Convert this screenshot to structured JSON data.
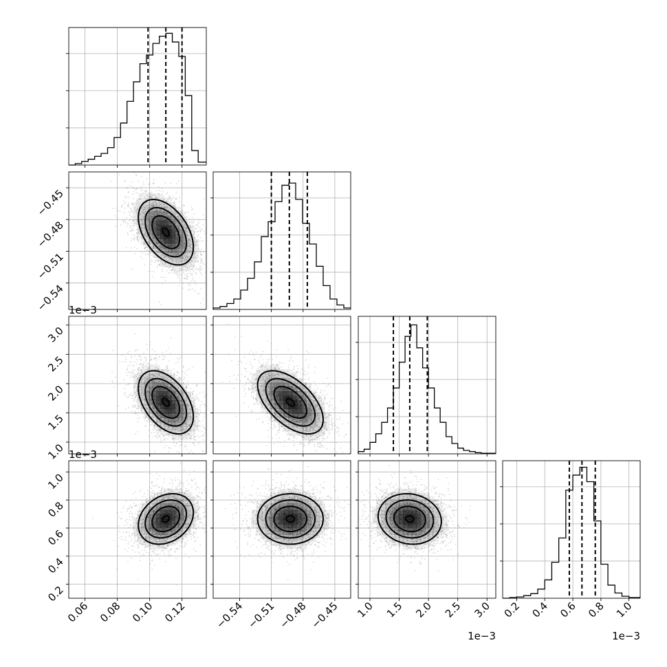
{
  "chart_data": {
    "type": "corner",
    "grid": true,
    "params": [
      {
        "id": "p0",
        "lim": [
          0.05,
          0.135
        ],
        "ticks": [
          0.06,
          0.08,
          0.1,
          0.12
        ],
        "tick_labels": [
          "0.06",
          "0.08",
          "0.10",
          "0.12"
        ],
        "offset_label": "",
        "quantiles": [
          0.099,
          0.11,
          0.12
        ],
        "mean": 0.11,
        "sd": 0.0085
      },
      {
        "id": "p1",
        "lim": [
          -0.565,
          -0.435
        ],
        "ticks": [
          -0.54,
          -0.51,
          -0.48,
          -0.45
        ],
        "tick_labels": [
          "−0.54",
          "−0.51",
          "−0.48",
          "−0.45"
        ],
        "offset_label": "",
        "quantiles": [
          -0.51,
          -0.493,
          -0.476
        ],
        "mean": -0.492,
        "sd": 0.0155
      },
      {
        "id": "p2",
        "lim": [
          0.8,
          3.15
        ],
        "ticks": [
          1.0,
          1.5,
          2.0,
          2.5,
          3.0
        ],
        "tick_labels": [
          "1.0",
          "1.5",
          "2.0",
          "2.5",
          "3.0"
        ],
        "offset_label": "1e−3",
        "quantiles": [
          1.4,
          1.68,
          1.98
        ],
        "mean": 1.68,
        "sd": 0.27
      },
      {
        "id": "p3",
        "lim": [
          0.1,
          1.08
        ],
        "ticks": [
          0.2,
          0.4,
          0.6,
          0.8,
          1.0
        ],
        "tick_labels": [
          "0.2",
          "0.4",
          "0.6",
          "0.8",
          "1.0"
        ],
        "offset_label": "1e−3",
        "quantiles": [
          0.575,
          0.665,
          0.76
        ],
        "mean": 0.665,
        "sd": 0.09
      }
    ],
    "diagonal_histograms": [
      {
        "param": "p0",
        "edges": [
          0.05,
          0.054,
          0.058,
          0.062,
          0.066,
          0.07,
          0.074,
          0.078,
          0.082,
          0.086,
          0.09,
          0.094,
          0.098,
          0.102,
          0.106,
          0.11,
          0.114,
          0.118,
          0.122,
          0.126,
          0.13,
          0.135
        ],
        "counts": [
          0,
          2,
          5,
          8,
          12,
          16,
          24,
          38,
          58,
          88,
          115,
          140,
          152,
          168,
          178,
          182,
          170,
          150,
          96,
          20,
          4
        ],
        "ymax": 190
      },
      {
        "param": "p1",
        "edges": [
          -0.565,
          -0.5585,
          -0.552,
          -0.5455,
          -0.539,
          -0.5325,
          -0.526,
          -0.5195,
          -0.513,
          -0.5065,
          -0.5,
          -0.4935,
          -0.487,
          -0.4805,
          -0.474,
          -0.4675,
          -0.461,
          -0.4545,
          -0.448,
          -0.4415,
          -0.435
        ],
        "counts": [
          2,
          4,
          8,
          14,
          26,
          42,
          64,
          98,
          118,
          145,
          167,
          170,
          148,
          116,
          88,
          58,
          32,
          14,
          6,
          2
        ],
        "ymax": 185
      },
      {
        "param": "p2",
        "edges": [
          0.8,
          0.9,
          1.0,
          1.1,
          1.2,
          1.3,
          1.4,
          1.5,
          1.6,
          1.7,
          1.8,
          1.9,
          2.0,
          2.1,
          2.2,
          2.3,
          2.4,
          2.5,
          2.6,
          2.7,
          2.8,
          2.9,
          3.0,
          3.15
        ],
        "counts": [
          4,
          8,
          20,
          35,
          55,
          80,
          115,
          160,
          205,
          225,
          185,
          150,
          115,
          80,
          55,
          30,
          18,
          10,
          6,
          4,
          2,
          1,
          1
        ],
        "ymax": 240
      },
      {
        "param": "p3",
        "edges": [
          0.1,
          0.15,
          0.2,
          0.25,
          0.3,
          0.35,
          0.4,
          0.45,
          0.5,
          0.55,
          0.6,
          0.65,
          0.7,
          0.75,
          0.8,
          0.85,
          0.9,
          0.95,
          1.0,
          1.08
        ],
        "counts": [
          0,
          1,
          2,
          4,
          7,
          14,
          28,
          55,
          92,
          165,
          188,
          200,
          178,
          118,
          52,
          20,
          8,
          3,
          1
        ],
        "ymax": 210
      }
    ],
    "pair_panels": [
      {
        "x": "p0",
        "y": "p1",
        "corr": -0.45
      },
      {
        "x": "p0",
        "y": "p2",
        "corr": -0.45
      },
      {
        "x": "p1",
        "y": "p2",
        "corr": -0.55
      },
      {
        "x": "p0",
        "y": "p3",
        "corr": 0.25
      },
      {
        "x": "p1",
        "y": "p3",
        "corr": 0.0
      },
      {
        "x": "p2",
        "y": "p3",
        "corr": -0.1
      }
    ]
  },
  "colors": {
    "axes": "#000000",
    "grid": "#b0b0b0",
    "scatter": "#808080",
    "density": "#000000"
  }
}
